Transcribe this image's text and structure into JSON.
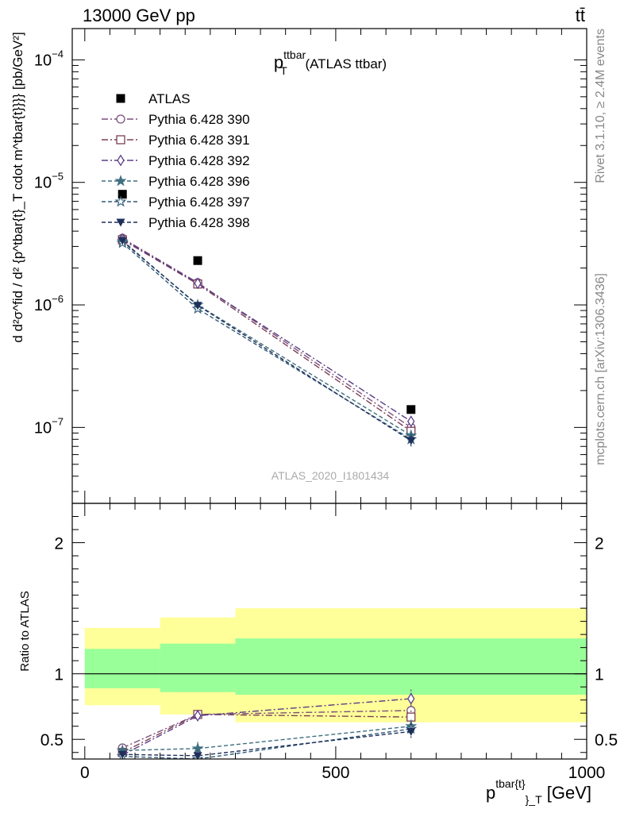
{
  "header": {
    "left": "13000 GeV pp",
    "right": "tt̄"
  },
  "side_labels": {
    "rivet": "Rivet 3.1.10, ≥ 2.4M events",
    "mcplots": "mcplots.cern.ch [arXiv:1306.3436]"
  },
  "watermark": "ATLAS_2020_I1801434",
  "chart_data": [
    {
      "type": "line",
      "panel": "main",
      "title": {
        "base": "p",
        "sup": "ttbar",
        "sub": "T",
        "suffix": " (ATLAS ttbar)"
      },
      "ylabel": "d d²σ^fid / d² {p^tbar{t}_T cdot m^tbar{t}}}} [pb/GeV²]",
      "yscale": "log",
      "ylim": [
        2.4e-08,
        0.00018
      ],
      "xlim": [
        -25,
        1000
      ],
      "y_ticks": [
        {
          "value": 0.0001,
          "label": "10",
          "exp": "−4"
        },
        {
          "value": 1e-05,
          "label": "10",
          "exp": "−5"
        },
        {
          "value": 1e-06,
          "label": "10",
          "exp": "−6"
        },
        {
          "value": 1e-07,
          "label": "10",
          "exp": "−7"
        }
      ],
      "legend_position": "top-left",
      "data_series": {
        "name": "ATLAS",
        "x": [
          75,
          225,
          650
        ],
        "y": [
          8e-06,
          2.3e-06,
          1.4e-07
        ],
        "color": "#000000",
        "marker": "filled-square"
      },
      "series": [
        {
          "name": "Pythia 6.428 390",
          "x": [
            75,
            225,
            650
          ],
          "y": [
            3.5e-06,
            1.52e-06,
            1e-07
          ],
          "yerr": [
            0.0,
            0.0,
            0.0
          ],
          "color": "#7b4f7b",
          "marker": "open-circle",
          "dash": "dashdot"
        },
        {
          "name": "Pythia 6.428 391",
          "x": [
            75,
            225,
            650
          ],
          "y": [
            3.4e-06,
            1.48e-06,
            9.3e-08
          ],
          "yerr": [
            0.0,
            0.0,
            0.0
          ],
          "color": "#7b3f55",
          "marker": "open-square",
          "dash": "dashdot"
        },
        {
          "name": "Pythia 6.428 392",
          "x": [
            75,
            225,
            650
          ],
          "y": [
            3.45e-06,
            1.5e-06,
            1.12e-07
          ],
          "yerr": [
            0.0,
            0.0,
            1e-08
          ],
          "color": "#5a3d87",
          "marker": "open-diamond",
          "dash": "dashdot"
        },
        {
          "name": "Pythia 6.428 396",
          "x": [
            75,
            225,
            650
          ],
          "y": [
            3.3e-06,
            1e-06,
            8.6e-08
          ],
          "yerr": [
            0.0,
            0.0,
            7e-09
          ],
          "color": "#3f6f7f",
          "marker": "filled-star",
          "dash": "dashed"
        },
        {
          "name": "Pythia 6.428 397",
          "x": [
            75,
            225,
            650
          ],
          "y": [
            3.2e-06,
            9.3e-07,
            8e-08
          ],
          "yerr": [
            0.0,
            0.0,
            8e-09
          ],
          "color": "#2f5a78",
          "marker": "open-star",
          "dash": "dashed"
        },
        {
          "name": "Pythia 6.428 398",
          "x": [
            75,
            225,
            650
          ],
          "y": [
            3.35e-06,
            9.9e-07,
            7.8e-08
          ],
          "yerr": [
            0.0,
            0.0,
            8e-09
          ],
          "color": "#1f2f5a",
          "marker": "filled-triangle-down",
          "dash": "dashed"
        }
      ]
    },
    {
      "type": "line",
      "panel": "ratio",
      "ylabel": "Ratio to ATLAS",
      "xlabel": {
        "base": "p",
        "sup": "tbar{t}",
        "sub": "}_T",
        "suffix": " [GeV]"
      },
      "ylim": [
        0.35,
        2.3
      ],
      "xlim": [
        -25,
        1000
      ],
      "x_ticks": [
        0,
        500,
        1000
      ],
      "y_ticks": [
        0.5,
        1,
        2
      ],
      "bands": {
        "bins": [
          {
            "x": [
              0,
              150
            ],
            "outer": [
              0.76,
              1.35
            ],
            "inner": [
              0.89,
              1.19
            ]
          },
          {
            "x": [
              150,
              300
            ],
            "outer": [
              0.69,
              1.43
            ],
            "inner": [
              0.86,
              1.23
            ]
          },
          {
            "x": [
              300,
              1000
            ],
            "outer": [
              0.63,
              1.5
            ],
            "inner": [
              0.84,
              1.27
            ]
          }
        ],
        "outer_color": "#ffff99",
        "inner_color": "#99ff99"
      },
      "series": [
        {
          "name": "Pythia 6.428 390",
          "x": [
            75,
            225,
            650
          ],
          "y": [
            0.435,
            0.69,
            0.72
          ],
          "yerr": [
            0.02,
            0.03,
            0.05
          ]
        },
        {
          "name": "Pythia 6.428 391",
          "x": [
            75,
            225,
            650
          ],
          "y": [
            0.4,
            0.69,
            0.67
          ],
          "yerr": [
            0.02,
            0.03,
            0.05
          ]
        },
        {
          "name": "Pythia 6.428 392",
          "x": [
            75,
            225,
            650
          ],
          "y": [
            0.38,
            0.68,
            0.81
          ],
          "yerr": [
            0.02,
            0.03,
            0.07
          ]
        },
        {
          "name": "Pythia 6.428 396",
          "x": [
            75,
            225,
            650
          ],
          "y": [
            0.415,
            0.43,
            0.6
          ],
          "yerr": [
            0.02,
            0.05,
            0.05
          ]
        },
        {
          "name": "Pythia 6.428 397",
          "x": [
            75,
            225,
            650
          ],
          "y": [
            0.37,
            0.35,
            0.58
          ],
          "yerr": [
            0.02,
            0.04,
            0.06
          ]
        },
        {
          "name": "Pythia 6.428 398",
          "x": [
            75,
            225,
            650
          ],
          "y": [
            0.385,
            0.375,
            0.56
          ],
          "yerr": [
            0.02,
            0.04,
            0.06
          ]
        }
      ]
    }
  ]
}
